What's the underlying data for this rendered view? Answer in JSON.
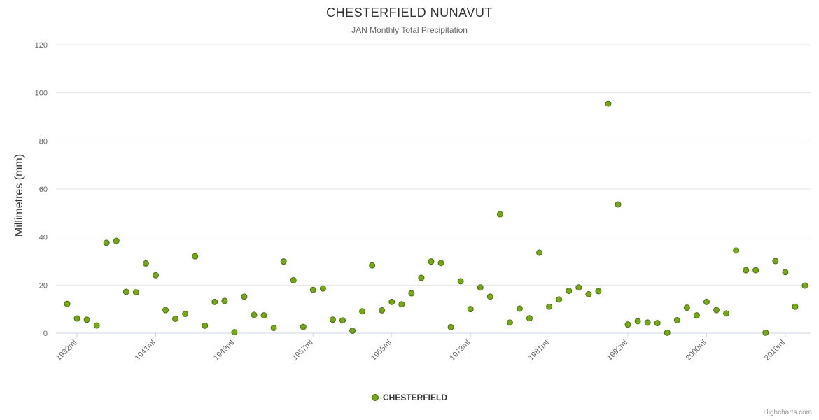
{
  "chart": {
    "title": "CHESTERFIELD NUNAVUT",
    "subtitle": "JAN Monthly Total Precipitation",
    "ylabel": "Millimetres (mm)",
    "legend_label": "CHESTERFIELD",
    "credits": "Highcharts.com"
  },
  "chart_data": {
    "type": "scatter",
    "title": "CHESTERFIELD NUNAVUT",
    "subtitle": "JAN Monthly Total Precipitation",
    "xlabel": "",
    "ylabel": "Millimetres (mm)",
    "ylim": [
      0,
      120
    ],
    "yticks": [
      0,
      20,
      40,
      60,
      80,
      100,
      120
    ],
    "grid": true,
    "legend_position": "bottom",
    "series_name": "CHESTERFIELD",
    "point_color": "#77a61d",
    "point_border_color": "#4c6f0e",
    "grid_color": "#e6e6e6",
    "axis_line_color": "#ccd6eb",
    "tick_label_color": "#666666",
    "x_tick_labels": [
      {
        "index": 1,
        "label": "1932ml"
      },
      {
        "index": 9,
        "label": "1941ml"
      },
      {
        "index": 17,
        "label": "1949ml"
      },
      {
        "index": 25,
        "label": "1957ml"
      },
      {
        "index": 33,
        "label": "1965ml"
      },
      {
        "index": 41,
        "label": "1973ml"
      },
      {
        "index": 49,
        "label": "1981ml"
      },
      {
        "index": 57,
        "label": "1992ml"
      },
      {
        "index": 65,
        "label": "2000ml"
      },
      {
        "index": 73,
        "label": "2010ml"
      }
    ],
    "points": [
      {
        "year": 1931,
        "value": 12.2
      },
      {
        "year": 1932,
        "value": 6.1
      },
      {
        "year": 1933,
        "value": 5.6
      },
      {
        "year": 1934,
        "value": 3.2
      },
      {
        "year": 1935,
        "value": 37.6
      },
      {
        "year": 1936,
        "value": 38.4
      },
      {
        "year": 1937,
        "value": 17.2
      },
      {
        "year": 1938,
        "value": 17.0
      },
      {
        "year": 1940,
        "value": 29.0
      },
      {
        "year": 1941,
        "value": 24.1
      },
      {
        "year": 1942,
        "value": 9.6
      },
      {
        "year": 1943,
        "value": 6.0
      },
      {
        "year": 1944,
        "value": 8.0
      },
      {
        "year": 1945,
        "value": 32.0
      },
      {
        "year": 1946,
        "value": 3.1
      },
      {
        "year": 1947,
        "value": 13.0
      },
      {
        "year": 1948,
        "value": 13.4
      },
      {
        "year": 1949,
        "value": 0.4
      },
      {
        "year": 1950,
        "value": 15.2
      },
      {
        "year": 1951,
        "value": 7.6
      },
      {
        "year": 1952,
        "value": 7.4
      },
      {
        "year": 1953,
        "value": 2.2
      },
      {
        "year": 1954,
        "value": 29.8
      },
      {
        "year": 1955,
        "value": 22.0
      },
      {
        "year": 1956,
        "value": 2.6
      },
      {
        "year": 1957,
        "value": 18.0
      },
      {
        "year": 1958,
        "value": 18.6
      },
      {
        "year": 1959,
        "value": 5.6
      },
      {
        "year": 1960,
        "value": 5.3
      },
      {
        "year": 1961,
        "value": 1.0
      },
      {
        "year": 1962,
        "value": 9.1
      },
      {
        "year": 1963,
        "value": 28.2
      },
      {
        "year": 1964,
        "value": 9.5
      },
      {
        "year": 1965,
        "value": 13.0
      },
      {
        "year": 1966,
        "value": 12.0
      },
      {
        "year": 1967,
        "value": 16.6
      },
      {
        "year": 1968,
        "value": 23.0
      },
      {
        "year": 1969,
        "value": 29.8
      },
      {
        "year": 1970,
        "value": 29.2
      },
      {
        "year": 1971,
        "value": 2.5
      },
      {
        "year": 1972,
        "value": 21.6
      },
      {
        "year": 1973,
        "value": 10.0
      },
      {
        "year": 1974,
        "value": 19.0
      },
      {
        "year": 1975,
        "value": 15.2
      },
      {
        "year": 1976,
        "value": 49.5
      },
      {
        "year": 1977,
        "value": 4.4
      },
      {
        "year": 1978,
        "value": 10.2
      },
      {
        "year": 1979,
        "value": 6.2
      },
      {
        "year": 1980,
        "value": 33.5
      },
      {
        "year": 1981,
        "value": 11.0
      },
      {
        "year": 1982,
        "value": 14.0
      },
      {
        "year": 1984,
        "value": 17.6
      },
      {
        "year": 1985,
        "value": 19.0
      },
      {
        "year": 1987,
        "value": 16.2
      },
      {
        "year": 1988,
        "value": 17.5
      },
      {
        "year": 1990,
        "value": 95.5
      },
      {
        "year": 1991,
        "value": 53.6
      },
      {
        "year": 1992,
        "value": 3.6
      },
      {
        "year": 1993,
        "value": 5.0
      },
      {
        "year": 1994,
        "value": 4.4
      },
      {
        "year": 1995,
        "value": 4.2
      },
      {
        "year": 1996,
        "value": 0.2
      },
      {
        "year": 1997,
        "value": 5.4
      },
      {
        "year": 1998,
        "value": 10.6
      },
      {
        "year": 1999,
        "value": 7.4
      },
      {
        "year": 2000,
        "value": 13.0
      },
      {
        "year": 2001,
        "value": 9.6
      },
      {
        "year": 2002,
        "value": 8.2
      },
      {
        "year": 2004,
        "value": 34.4
      },
      {
        "year": 2005,
        "value": 26.2
      },
      {
        "year": 2006,
        "value": 26.2
      },
      {
        "year": 2008,
        "value": 0.2
      },
      {
        "year": 2009,
        "value": 30.0
      },
      {
        "year": 2010,
        "value": 25.4
      },
      {
        "year": 2011,
        "value": 11.0
      },
      {
        "year": 2012,
        "value": 19.8
      }
    ]
  }
}
